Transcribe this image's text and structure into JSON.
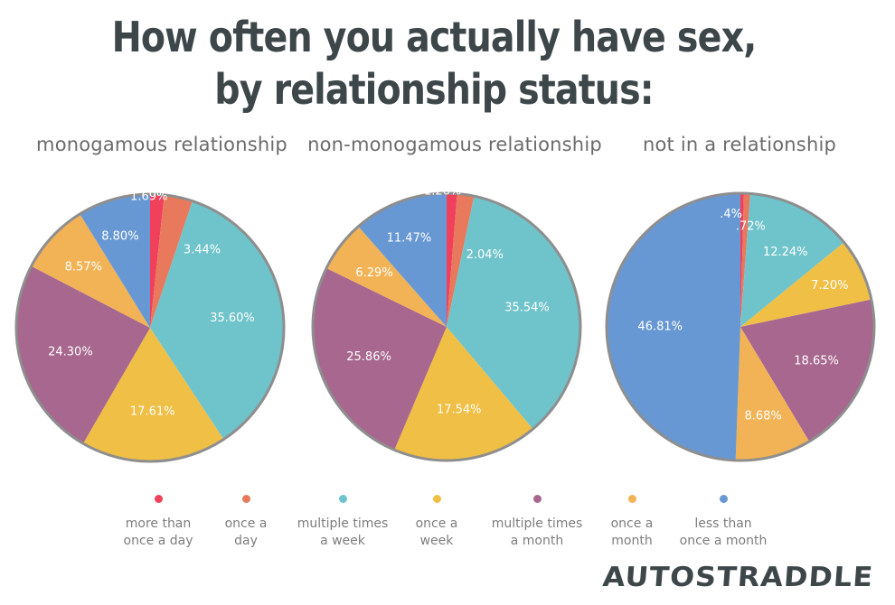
{
  "title": {
    "line1": "How often you actually have sex,",
    "line2": "by relationship status:"
  },
  "legend": [
    {
      "key": "more_than_once_day",
      "line1": "more than",
      "line2": "once a day",
      "color": "#f0405c"
    },
    {
      "key": "once_day",
      "line1": "once a",
      "line2": "day",
      "color": "#e8795c"
    },
    {
      "key": "multiple_week",
      "line1": "multiple times",
      "line2": "a week",
      "color": "#6fc4cb"
    },
    {
      "key": "once_week",
      "line1": "once a",
      "line2": "week",
      "color": "#f0bf45"
    },
    {
      "key": "multiple_month",
      "line1": "multiple times",
      "line2": "a month",
      "color": "#a8678e"
    },
    {
      "key": "once_month",
      "line1": "once a",
      "line2": "month",
      "color": "#f2b356"
    },
    {
      "key": "less_month",
      "line1": "less than",
      "line2": "once a month",
      "color": "#6898d3"
    }
  ],
  "logo": "AUTOSTRADDLE",
  "chart_data": [
    {
      "type": "pie",
      "title": "monogamous relationship",
      "categories": [
        "more than once a day",
        "once a day",
        "multiple times a week",
        "once a week",
        "multiple times a month",
        "once a month",
        "less than once a month"
      ],
      "values": [
        1.69,
        3.44,
        35.6,
        17.61,
        24.3,
        8.57,
        8.8
      ],
      "labels": [
        "1.69%",
        "3.44%",
        "35.60%",
        "17.61%",
        "24.30%",
        "8.57%",
        "8.80%"
      ]
    },
    {
      "type": "pie",
      "title": "non-monogamous relationship",
      "categories": [
        "more than once a day",
        "once a day",
        "multiple times a week",
        "once a week",
        "multiple times a month",
        "once a month",
        "less than once a month"
      ],
      "values": [
        1.26,
        2.04,
        35.54,
        17.54,
        25.86,
        6.29,
        11.47
      ],
      "labels": [
        "1.26%",
        "2.04%",
        "35.54%",
        "17.54%",
        "25.86%",
        "6.29%",
        "11.47%"
      ]
    },
    {
      "type": "pie",
      "title": "not in a relationship",
      "categories": [
        "more than once a day",
        "once a day",
        "multiple times a week",
        "once a week",
        "multiple times a month",
        "once a month",
        "less than once a month"
      ],
      "values": [
        0.4,
        0.72,
        12.24,
        7.2,
        18.65,
        8.68,
        46.81
      ],
      "labels": [
        ".4%",
        ".72%",
        "12.24%",
        "7.20%",
        "18.65%",
        "8.68%",
        "46.81%"
      ]
    }
  ]
}
